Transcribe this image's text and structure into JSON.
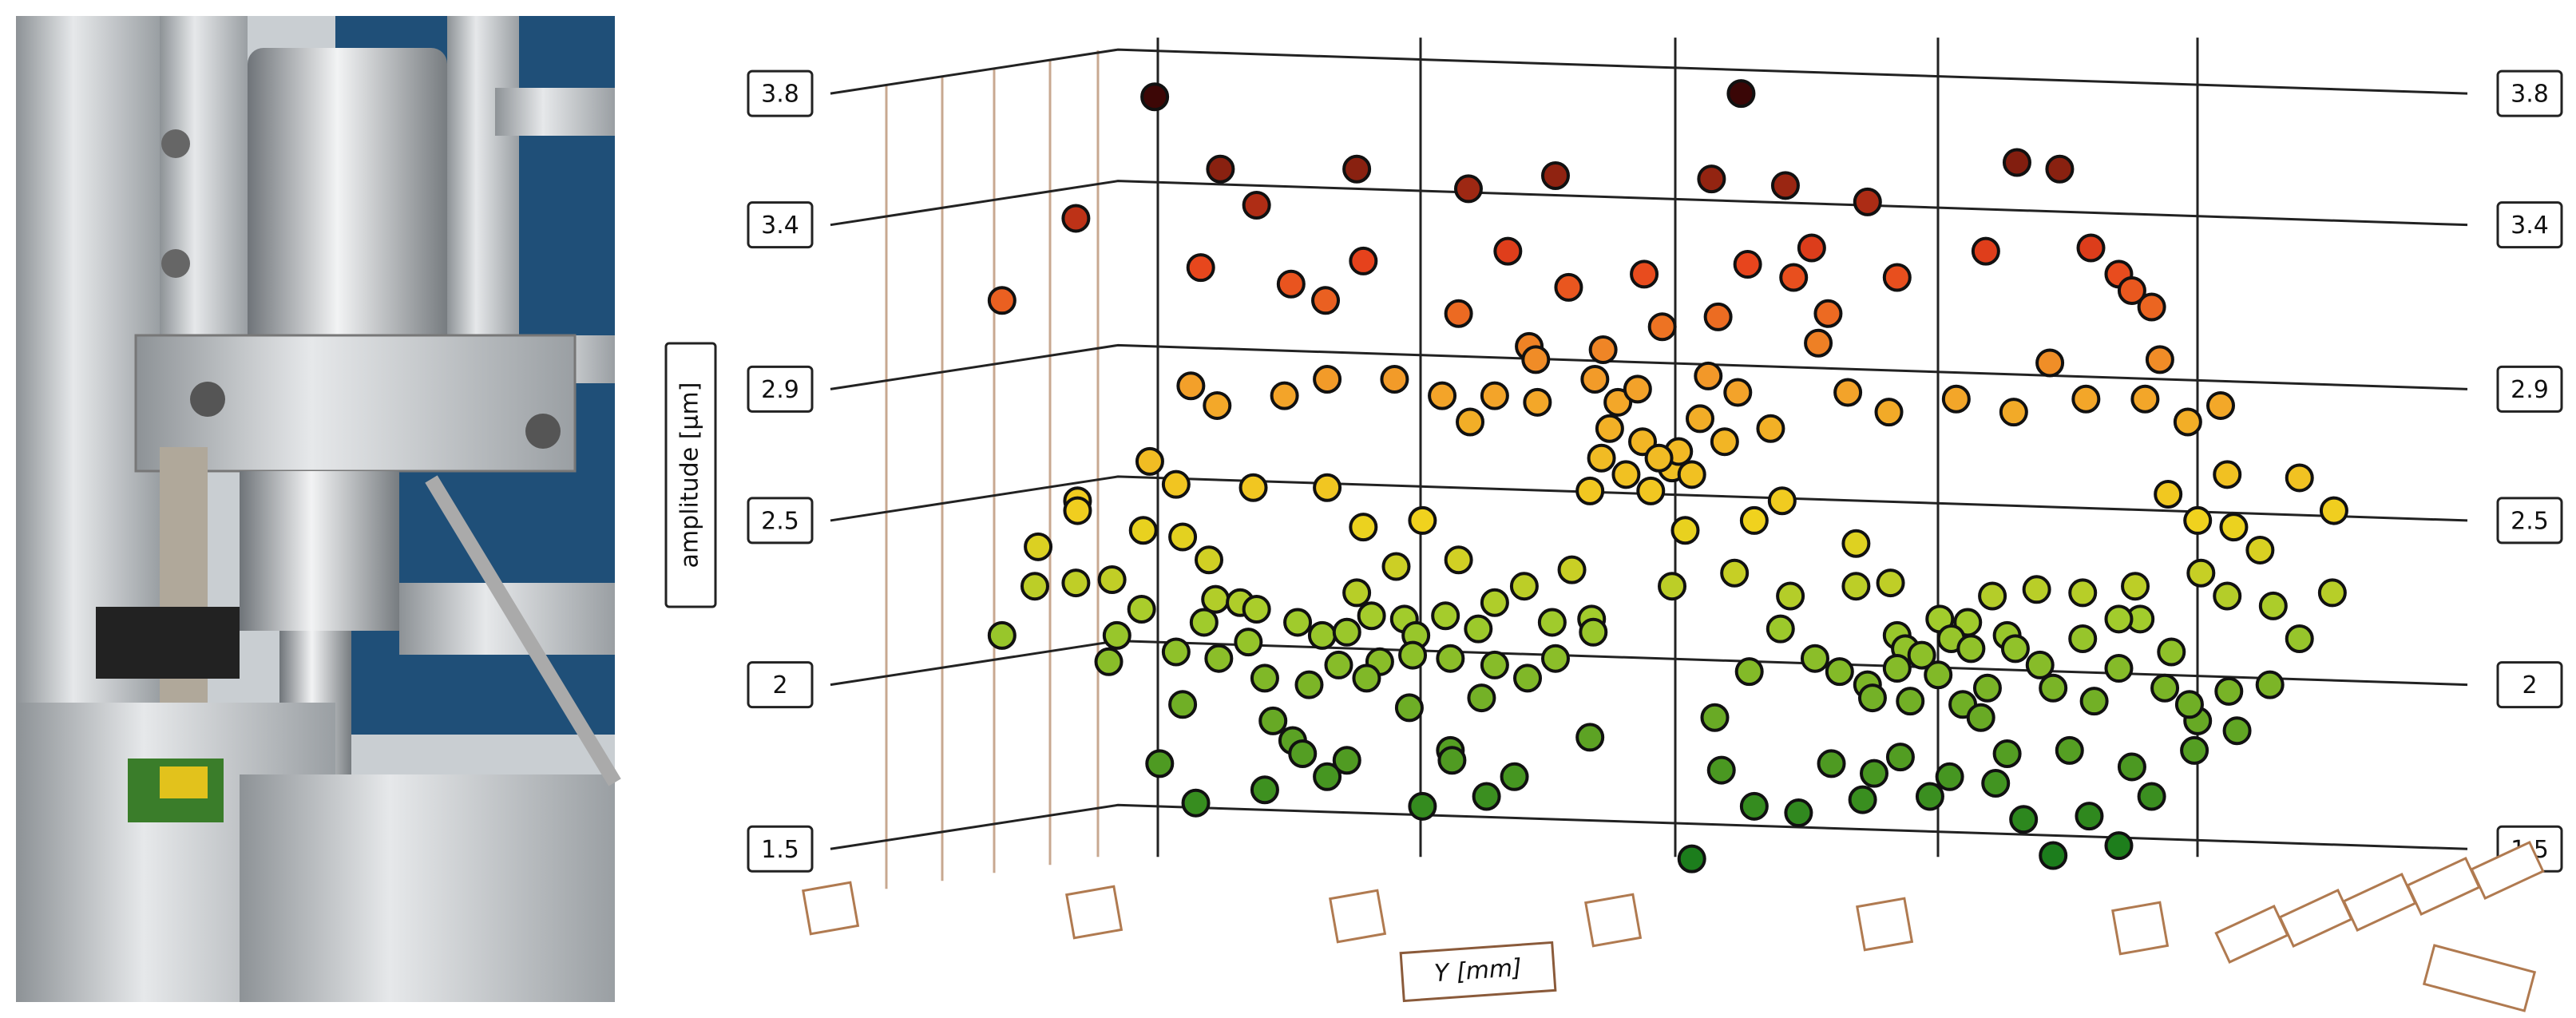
{
  "chart_data": {
    "type": "scatter",
    "ylabel": "amplitude [µm]",
    "xlabel": "Y [mm]",
    "ylim": [
      1.35,
      3.9
    ],
    "yticks": [
      1.5,
      2.0,
      2.5,
      2.9,
      3.4,
      3.8
    ],
    "xlim": [
      0,
      88
    ],
    "grid": true,
    "colormap": [
      {
        "value": 1.5,
        "color": "#1c7d1c"
      },
      {
        "value": 2.2,
        "color": "#a2cc2c"
      },
      {
        "value": 2.5,
        "color": "#f0d21e"
      },
      {
        "value": 2.9,
        "color": "#f3a22a"
      },
      {
        "value": 3.3,
        "color": "#e6401c"
      },
      {
        "value": 3.8,
        "color": "#3a0606"
      }
    ],
    "x": [
      14.3,
      50.0,
      5.0,
      9.5,
      18.3,
      20.5,
      26.6,
      33.4,
      38.7,
      48.2,
      52.7,
      57.7,
      66.8,
      69.4,
      17.1,
      22.6,
      24.7,
      27.0,
      35.8,
      39.5,
      44.1,
      50.4,
      53.2,
      54.3,
      59.5,
      64.9,
      71.3,
      73.0,
      73.8,
      75.0,
      32.8,
      37.1,
      37.5,
      45.2,
      48.6,
      55.3,
      54.7,
      68.8,
      75.5,
      41.6,
      48.0,
      16.5,
      18.1,
      22.2,
      24.8,
      28.9,
      31.8,
      33.5,
      35.0,
      37.6,
      41.1,
      42.5,
      43.7,
      49.8,
      51.8,
      56.5,
      59.0,
      63.1,
      66.6,
      71.0,
      74.6,
      77.2,
      79.2,
      42.0,
      44.0,
      47.5,
      49.0,
      41.5,
      43.0,
      44.5,
      45.8,
      46.2,
      45.0,
      40.8,
      47.0,
      14.0,
      15.6,
      20.3,
      24.8,
      9.6,
      9.6,
      76.0,
      79.6,
      84.0,
      86.1,
      77.8,
      80.0,
      52.5,
      50.8,
      46.6,
      27.0,
      30.6,
      13.6,
      16.0,
      7.2,
      81.6,
      57.0,
      45.8,
      78.0,
      74.0,
      7.0,
      9.5,
      11.7,
      17.6,
      18.0,
      19.5,
      20.5,
      29.0,
      26.6,
      27.5,
      32.8,
      35.0,
      36.8,
      39.7,
      40.9,
      49.6,
      53.0,
      57.0,
      59.1,
      62.1,
      63.8,
      65.3,
      68.0,
      70.8,
      74.3,
      79.6,
      82.4,
      86.0,
      5.0,
      12.0,
      13.5,
      17.3,
      20.0,
      23.0,
      24.5,
      26.0,
      29.5,
      30.2,
      32.0,
      34.0,
      38.5,
      41.0,
      52.4,
      59.5,
      60.0,
      61.0,
      62.8,
      64.0,
      66.2,
      66.7,
      70.8,
      73.0,
      76.2,
      84.0,
      11.5,
      15.6,
      18.2,
      21.0,
      23.7,
      25.5,
      28.0,
      30.0,
      32.3,
      35.0,
      37.0,
      38.7,
      50.5,
      54.5,
      56.0,
      57.7,
      59.5,
      62.0,
      65.0,
      68.2,
      73.0,
      75.8,
      79.7,
      82.2,
      16.0,
      21.5,
      27.2,
      29.8,
      34.2,
      48.4,
      58.0,
      60.3,
      63.5,
      64.6,
      69.0,
      71.5,
      77.8,
      80.2,
      77.6,
      77.3,
      22.7,
      23.3,
      26.0,
      40.8,
      32.3,
      32.4,
      55.5,
      58.1,
      59.7,
      66.2,
      70.0,
      73.8,
      14.6,
      24.8,
      48.8,
      62.7,
      36.2,
      34.5,
      21.0,
      16.8,
      30.6,
      61.5,
      65.5,
      75.0,
      50.8,
      53.5,
      57.4,
      67.2,
      71.2,
      73.0,
      69.0,
      47.0
    ],
    "values": [
      3.79,
      3.8,
      3.17,
      3.42,
      3.57,
      3.46,
      3.57,
      3.51,
      3.55,
      3.54,
      3.52,
      3.47,
      3.59,
      3.57,
      3.27,
      3.22,
      3.17,
      3.29,
      3.32,
      3.21,
      3.25,
      3.28,
      3.24,
      3.33,
      3.24,
      3.32,
      3.33,
      3.25,
      3.2,
      3.15,
      3.13,
      3.03,
      2.99,
      3.09,
      3.12,
      3.13,
      3.04,
      2.98,
      2.99,
      3.02,
      2.94,
      2.91,
      2.85,
      2.88,
      2.93,
      2.93,
      2.88,
      2.8,
      2.88,
      2.86,
      2.93,
      2.86,
      2.9,
      2.89,
      2.78,
      2.89,
      2.83,
      2.87,
      2.83,
      2.87,
      2.87,
      2.8,
      2.85,
      2.78,
      2.74,
      2.81,
      2.74,
      2.69,
      2.64,
      2.59,
      2.66,
      2.71,
      2.69,
      2.59,
      2.64,
      2.68,
      2.61,
      2.6,
      2.6,
      2.56,
      2.53,
      2.58,
      2.64,
      2.63,
      2.53,
      2.5,
      2.48,
      2.56,
      2.5,
      2.47,
      2.48,
      2.5,
      2.47,
      2.45,
      2.42,
      2.41,
      2.43,
      2.3,
      2.34,
      2.3,
      2.3,
      2.31,
      2.32,
      2.38,
      2.26,
      2.25,
      2.23,
      2.36,
      2.28,
      2.21,
      2.38,
      2.25,
      2.3,
      2.35,
      2.2,
      2.34,
      2.27,
      2.3,
      2.31,
      2.2,
      2.19,
      2.27,
      2.29,
      2.28,
      2.2,
      2.27,
      2.24,
      2.28,
      2.15,
      2.15,
      2.23,
      2.19,
      2.13,
      2.19,
      2.15,
      2.16,
      2.2,
      2.15,
      2.21,
      2.17,
      2.19,
      2.16,
      2.17,
      2.15,
      2.11,
      2.09,
      2.14,
      2.11,
      2.15,
      2.11,
      2.14,
      2.2,
      2.1,
      2.14,
      2.07,
      2.1,
      2.08,
      2.02,
      2.0,
      2.06,
      2.07,
      2.09,
      2.08,
      2.06,
      2.02,
      2.08,
      2.04,
      2.08,
      2.04,
      2.0,
      2.05,
      2.03,
      1.99,
      2.06,
      2.05,
      1.99,
      1.98,
      2.0,
      1.94,
      1.89,
      2.02,
      1.93,
      1.96,
      1.9,
      1.96,
      1.95,
      1.94,
      1.9,
      1.99,
      1.95,
      1.89,
      1.86,
      1.8,
      1.94,
      1.83,
      1.79,
      1.77,
      1.84,
      1.8,
      1.77,
      1.76,
      1.73,
      1.78,
      1.79,
      1.8,
      1.75,
      1.76,
      1.72,
      1.74,
      1.72,
      1.72,
      1.66,
      1.68,
      1.64,
      1.63,
      1.66,
      1.7,
      1.66,
      1.63,
      1.61,
      1.65,
      1.59,
      1.6,
      1.51,
      1.48,
      1.47
    ]
  }
}
